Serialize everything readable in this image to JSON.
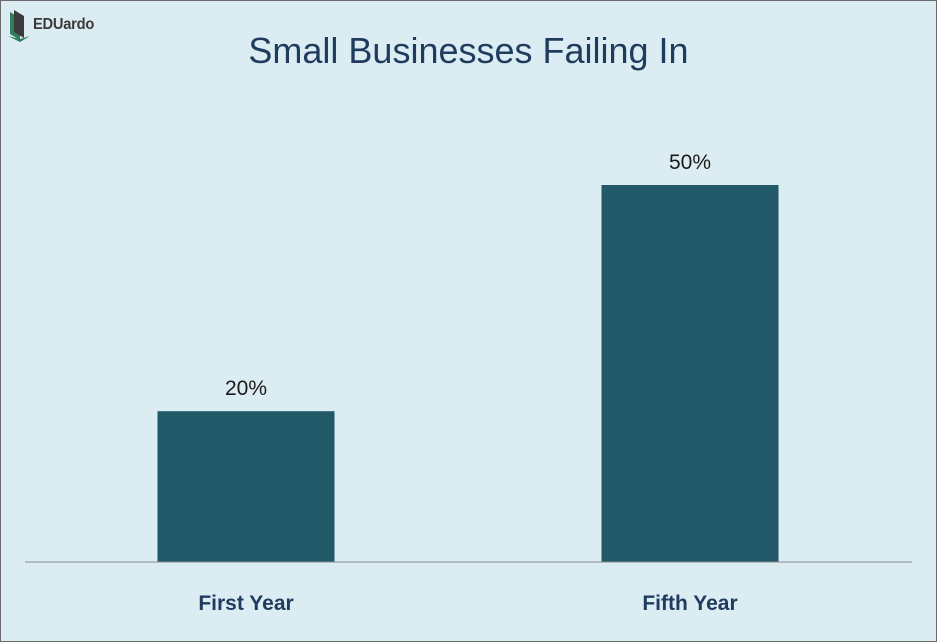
{
  "logo": {
    "text": "EDUardo",
    "icon": "book-icon"
  },
  "chart_data": {
    "type": "bar",
    "title": "Small Businesses Failing In",
    "categories": [
      "First Year",
      "Fifth Year"
    ],
    "values": [
      20,
      50
    ],
    "data_labels": [
      "20%",
      "50%"
    ],
    "xlabel": "",
    "ylabel": "",
    "ylim": [
      0,
      60
    ],
    "grid": false,
    "legend": "none",
    "colors": {
      "bar": "#225968",
      "axis": "#8a8a8a",
      "background": "#dbedf3",
      "title": "#1f3b5e",
      "category_label": "#1f3b5e",
      "data_label": "#1a1a1a"
    }
  }
}
